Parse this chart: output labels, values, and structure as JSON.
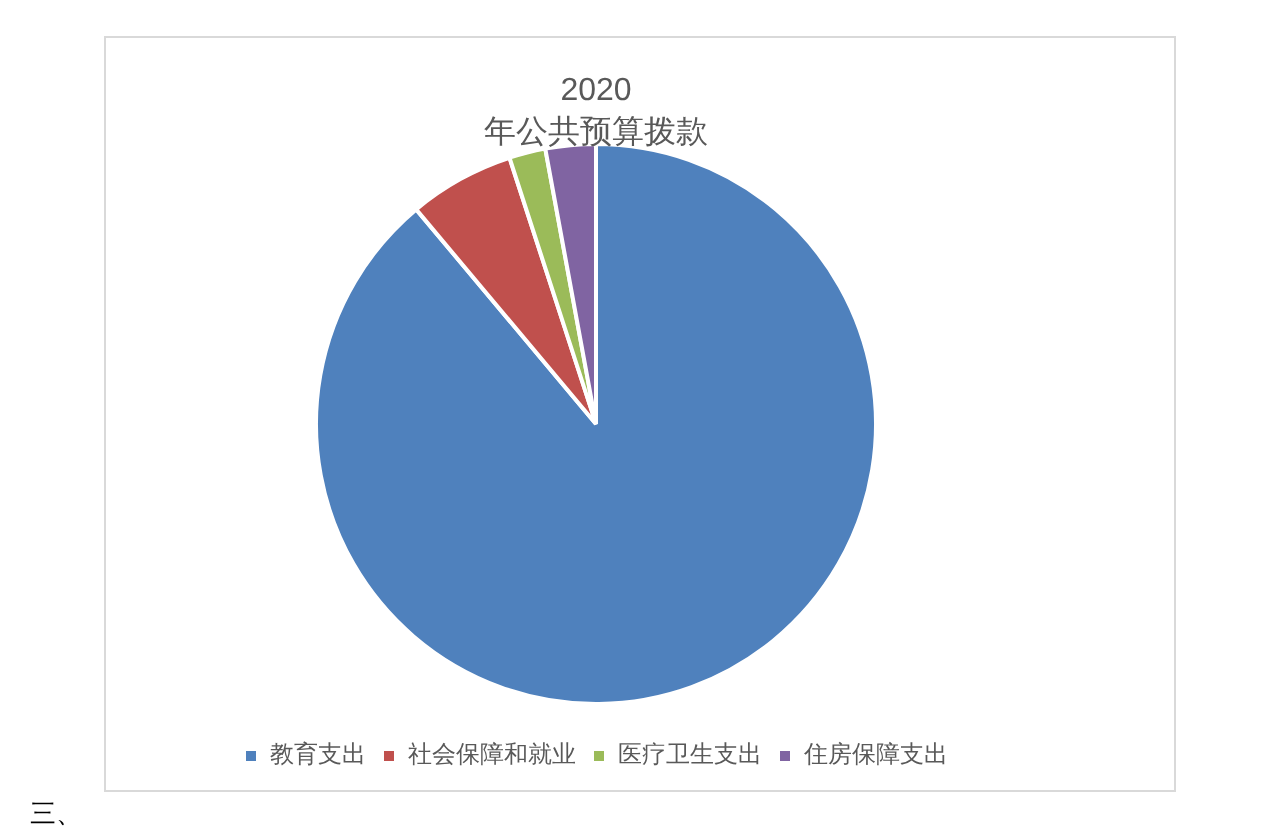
{
  "chart_data": {
    "type": "pie",
    "title": "2020\n年公共预算拨款",
    "categories": [
      "教育支出",
      "社会保障和就业",
      "医疗卫生支出",
      "住房保障支出"
    ],
    "values": [
      88.9,
      6.1,
      2.1,
      2.9
    ],
    "colors": [
      "#4f81bd",
      "#c0504d",
      "#9bbb59",
      "#8064a2"
    ],
    "legend": "bottom",
    "annotations": [
      "三、"
    ]
  }
}
